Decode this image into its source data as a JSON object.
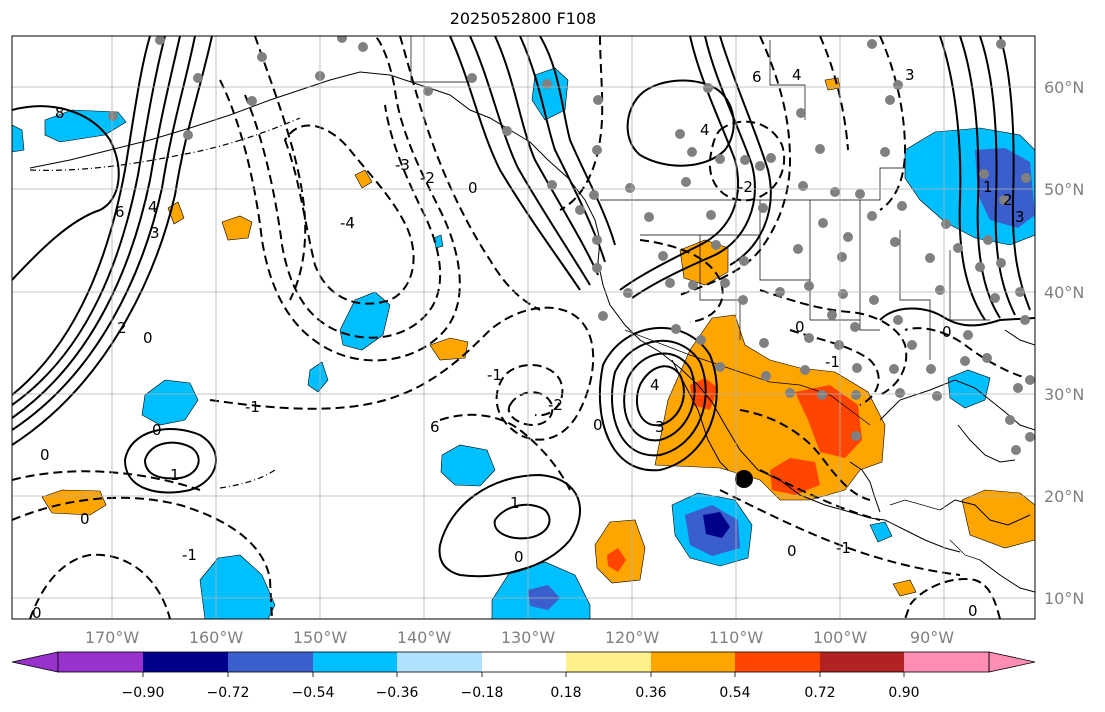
{
  "title": "2025052800 F108",
  "map": {
    "lon_ticks": [
      "170°W",
      "160°W",
      "150°W",
      "140°W",
      "130°W",
      "120°W",
      "110°W",
      "100°W",
      "90°W"
    ],
    "lat_ticks": [
      "60°N",
      "50°N",
      "40°N",
      "30°N",
      "20°N",
      "10°N"
    ],
    "lon_range": [
      -178,
      -81
    ],
    "lat_range": [
      8,
      65
    ],
    "grid": true
  },
  "colorbar": {
    "tick_labels": [
      "−0.90",
      "−0.72",
      "−0.54",
      "−0.36",
      "−0.18",
      "0.18",
      "0.36",
      "0.54",
      "0.72",
      "0.90"
    ],
    "colors": [
      "#9932cc",
      "#00008b",
      "#3a5fcd",
      "#00bfff",
      "#b0e2ff",
      "#ffffff",
      "#fff08c",
      "#ffa500",
      "#ff4500",
      "#b22222",
      "#ff8cb4"
    ],
    "extend": "both"
  },
  "contour_labels": [
    {
      "text": "8"
    },
    {
      "text": "6"
    },
    {
      "text": "4"
    },
    {
      "text": "3"
    },
    {
      "text": "2"
    },
    {
      "text": "1"
    },
    {
      "text": "0"
    },
    {
      "text": "-1"
    },
    {
      "text": "-2"
    },
    {
      "text": "-3"
    },
    {
      "text": "-4"
    }
  ],
  "markers": {
    "gray_dot_color": "#808080",
    "black_dot_color": "#000000"
  }
}
